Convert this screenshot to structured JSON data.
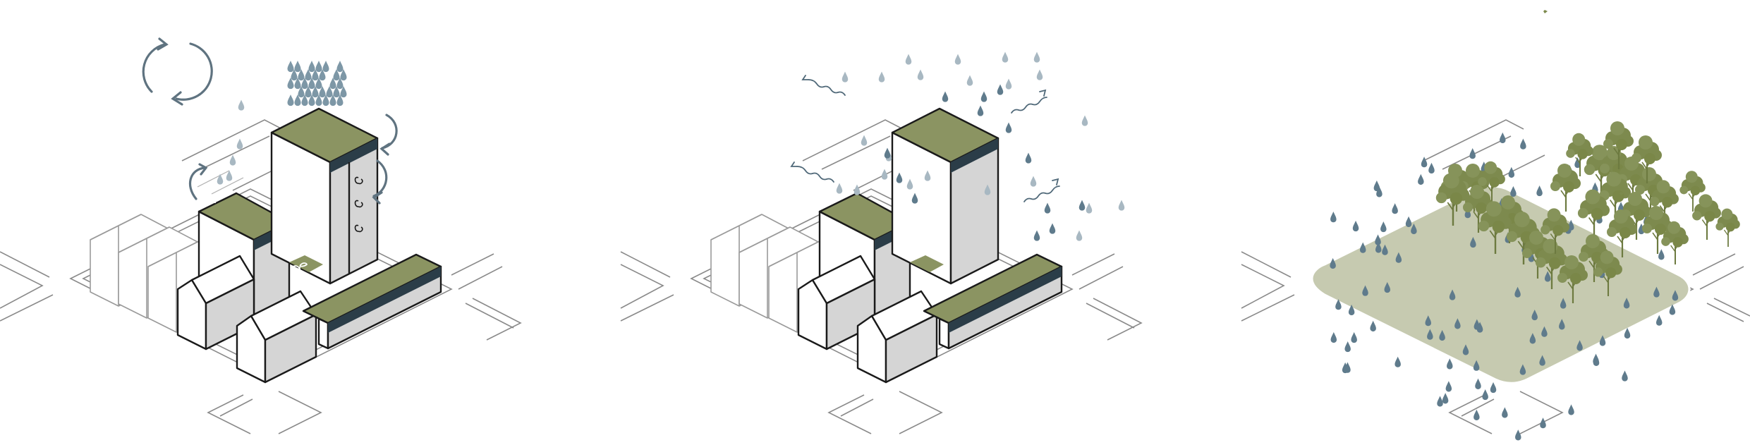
{
  "panels": [
    {
      "key": "panel-1-circulating-water"
    },
    {
      "key": "panel-2-evaporation"
    },
    {
      "key": "panel-3-forest-infiltration"
    }
  ],
  "colors": {
    "background": "#ffffff",
    "roof_green": "#8b9462",
    "wall_white": "#ffffff",
    "wall_grey": "#d5d5d5",
    "roof_band": "#2b3d48",
    "drop_blue": "#5f7b8c",
    "drop_light": "#a8b8c2",
    "arrow_blue": "#5f7380",
    "ground_green": "#c6cab0",
    "tree_green": "#7d8a4e",
    "road_line": "#8a8a8a"
  },
  "icons": [
    "cycle-arrows-icon",
    "raindrop-icon",
    "evaporation-wave-icon",
    "sprout-icon",
    "tree-icon"
  ]
}
